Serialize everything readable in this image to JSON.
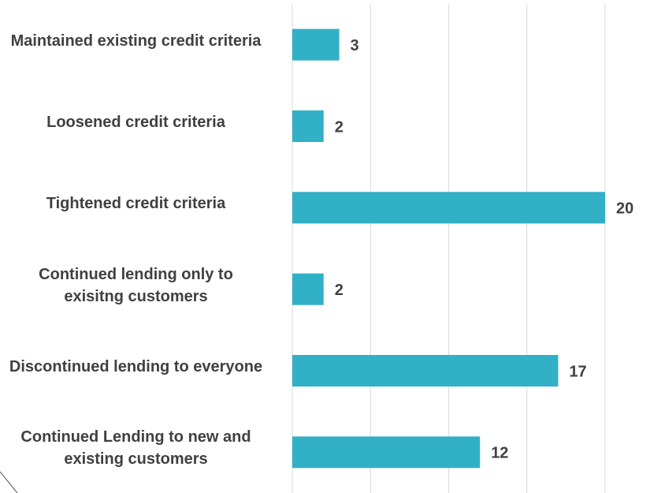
{
  "chart_data": {
    "type": "hbar",
    "categories": [
      "Maintained existing credit criteria",
      "Loosened credit criteria",
      "Tightened credit criteria",
      "Continued lending only to exisitng customers",
      "Discontinued lending to everyone",
      "Continued Lending to new and existing customers"
    ],
    "values": [
      3,
      2,
      20,
      2,
      17,
      12
    ],
    "color": "#31b0c6",
    "xlim": [
      0,
      20
    ],
    "xticks": [
      0,
      5,
      10,
      15,
      20
    ],
    "grid": true
  }
}
